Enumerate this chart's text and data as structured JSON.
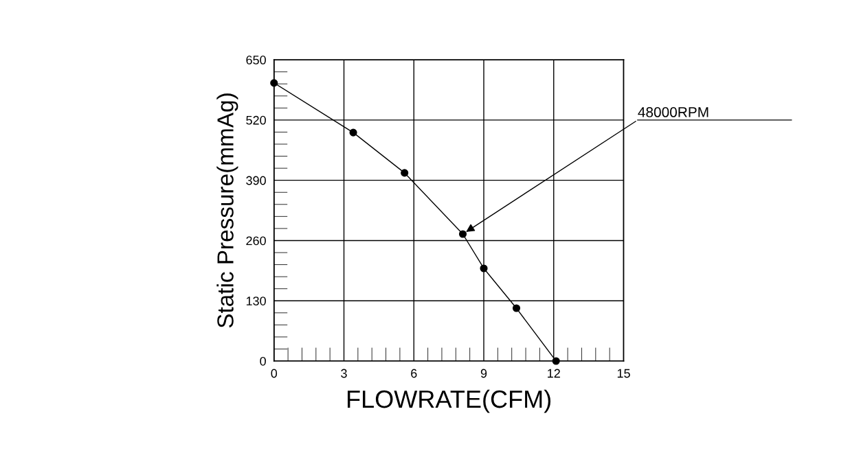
{
  "chart_data": {
    "type": "line",
    "xlabel": "FLOWRATE(CFM)",
    "ylabel": "Static Pressure(mmAg)",
    "x": [
      0,
      3.4,
      5.6,
      8.1,
      9.0,
      10.4,
      12.1
    ],
    "series": [
      {
        "color": "#000000",
        "values": [
          600,
          493,
          406,
          274,
          200,
          114,
          0
        ]
      }
    ],
    "xlim": [
      0,
      15
    ],
    "xticks": [
      0,
      3,
      6,
      9,
      12,
      15
    ],
    "ylim": [
      0,
      650
    ],
    "yticks": [
      0,
      130,
      260,
      390,
      520,
      650
    ],
    "grid": true,
    "marker": "circle",
    "line_style": "solid",
    "annotations": [
      {
        "text": "48000RPM",
        "x": 8.1,
        "y": 274
      }
    ]
  }
}
